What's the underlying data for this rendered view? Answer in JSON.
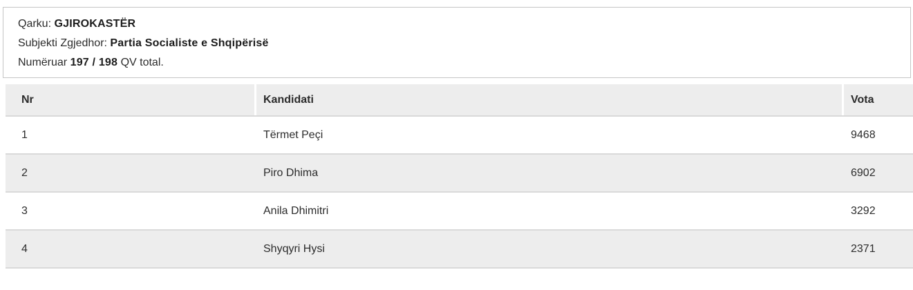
{
  "info": {
    "qarku_label": "Qarku:",
    "qarku_value": "GJIROKASTËR",
    "subjekti_label": "Subjekti Zgjedhor:",
    "subjekti_value": "Partia Socialiste e Shqipërisë",
    "numeruar_label": "Numëruar",
    "numeruar_count": "197 / 198",
    "numeruar_suffix": "QV total."
  },
  "table": {
    "columns": {
      "nr": "Nr",
      "kandidati": "Kandidati",
      "vota": "Vota"
    },
    "rows": [
      {
        "nr": "1",
        "kandidati": "Tërmet Peçi",
        "vota": "9468"
      },
      {
        "nr": "2",
        "kandidati": "Piro Dhima",
        "vota": "6902"
      },
      {
        "nr": "3",
        "kandidati": "Anila Dhimitri",
        "vota": "3292"
      },
      {
        "nr": "4",
        "kandidati": "Shyqyri Hysi",
        "vota": "2371"
      }
    ]
  },
  "colors": {
    "stripe": "#ededed",
    "row_separator": "#d9d9d9",
    "panel_border": "#c5c5c5",
    "text": "#2b2b2b"
  }
}
